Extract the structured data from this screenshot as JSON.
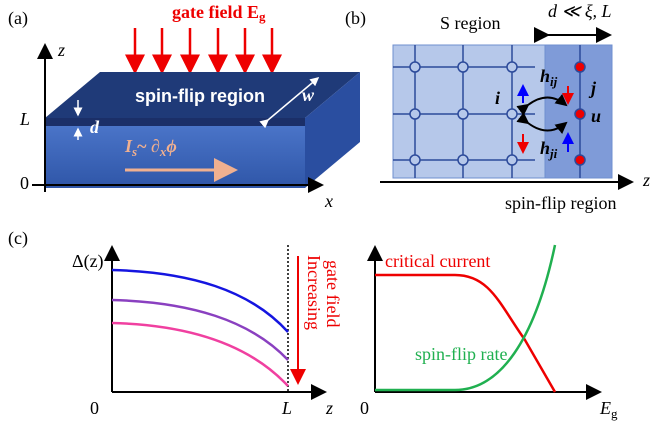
{
  "panel_a": {
    "label": "(a)",
    "gate_field": "gate field E",
    "gate_field_sub": "g",
    "z_axis": "z",
    "x_axis": "x",
    "l_tick": "L",
    "zero_tick": "0",
    "thickness": "d",
    "width": "w",
    "region": "spin-flip region",
    "current": "I",
    "current_sub": "s",
    "current_rel": "~ ∂",
    "current_rel_sub": "x",
    "current_phase": "ϕ"
  },
  "panel_b": {
    "label": "(b)",
    "s_region": "S region",
    "scale": "d ≪ ξ, L",
    "site_i": "i",
    "site_j": "j",
    "site_u": "u",
    "hop_ij": "h",
    "hop_ij_sub": "ij",
    "hop_ji": "h",
    "hop_ji_sub": "ji",
    "z_axis": "z",
    "region": "spin-flip region"
  },
  "panel_c": {
    "label": "(c)",
    "left_y_axis": "Δ(z)",
    "left_zero": "0",
    "left_l": "L",
    "left_x_axis": "z",
    "arrow_label_1": "Increasing",
    "arrow_label_2": "gate field",
    "right_zero": "0",
    "right_x_axis": "E",
    "right_x_axis_sub": "g",
    "critical_current": "critical current",
    "spin_flip_rate": "spin-flip rate"
  }
}
